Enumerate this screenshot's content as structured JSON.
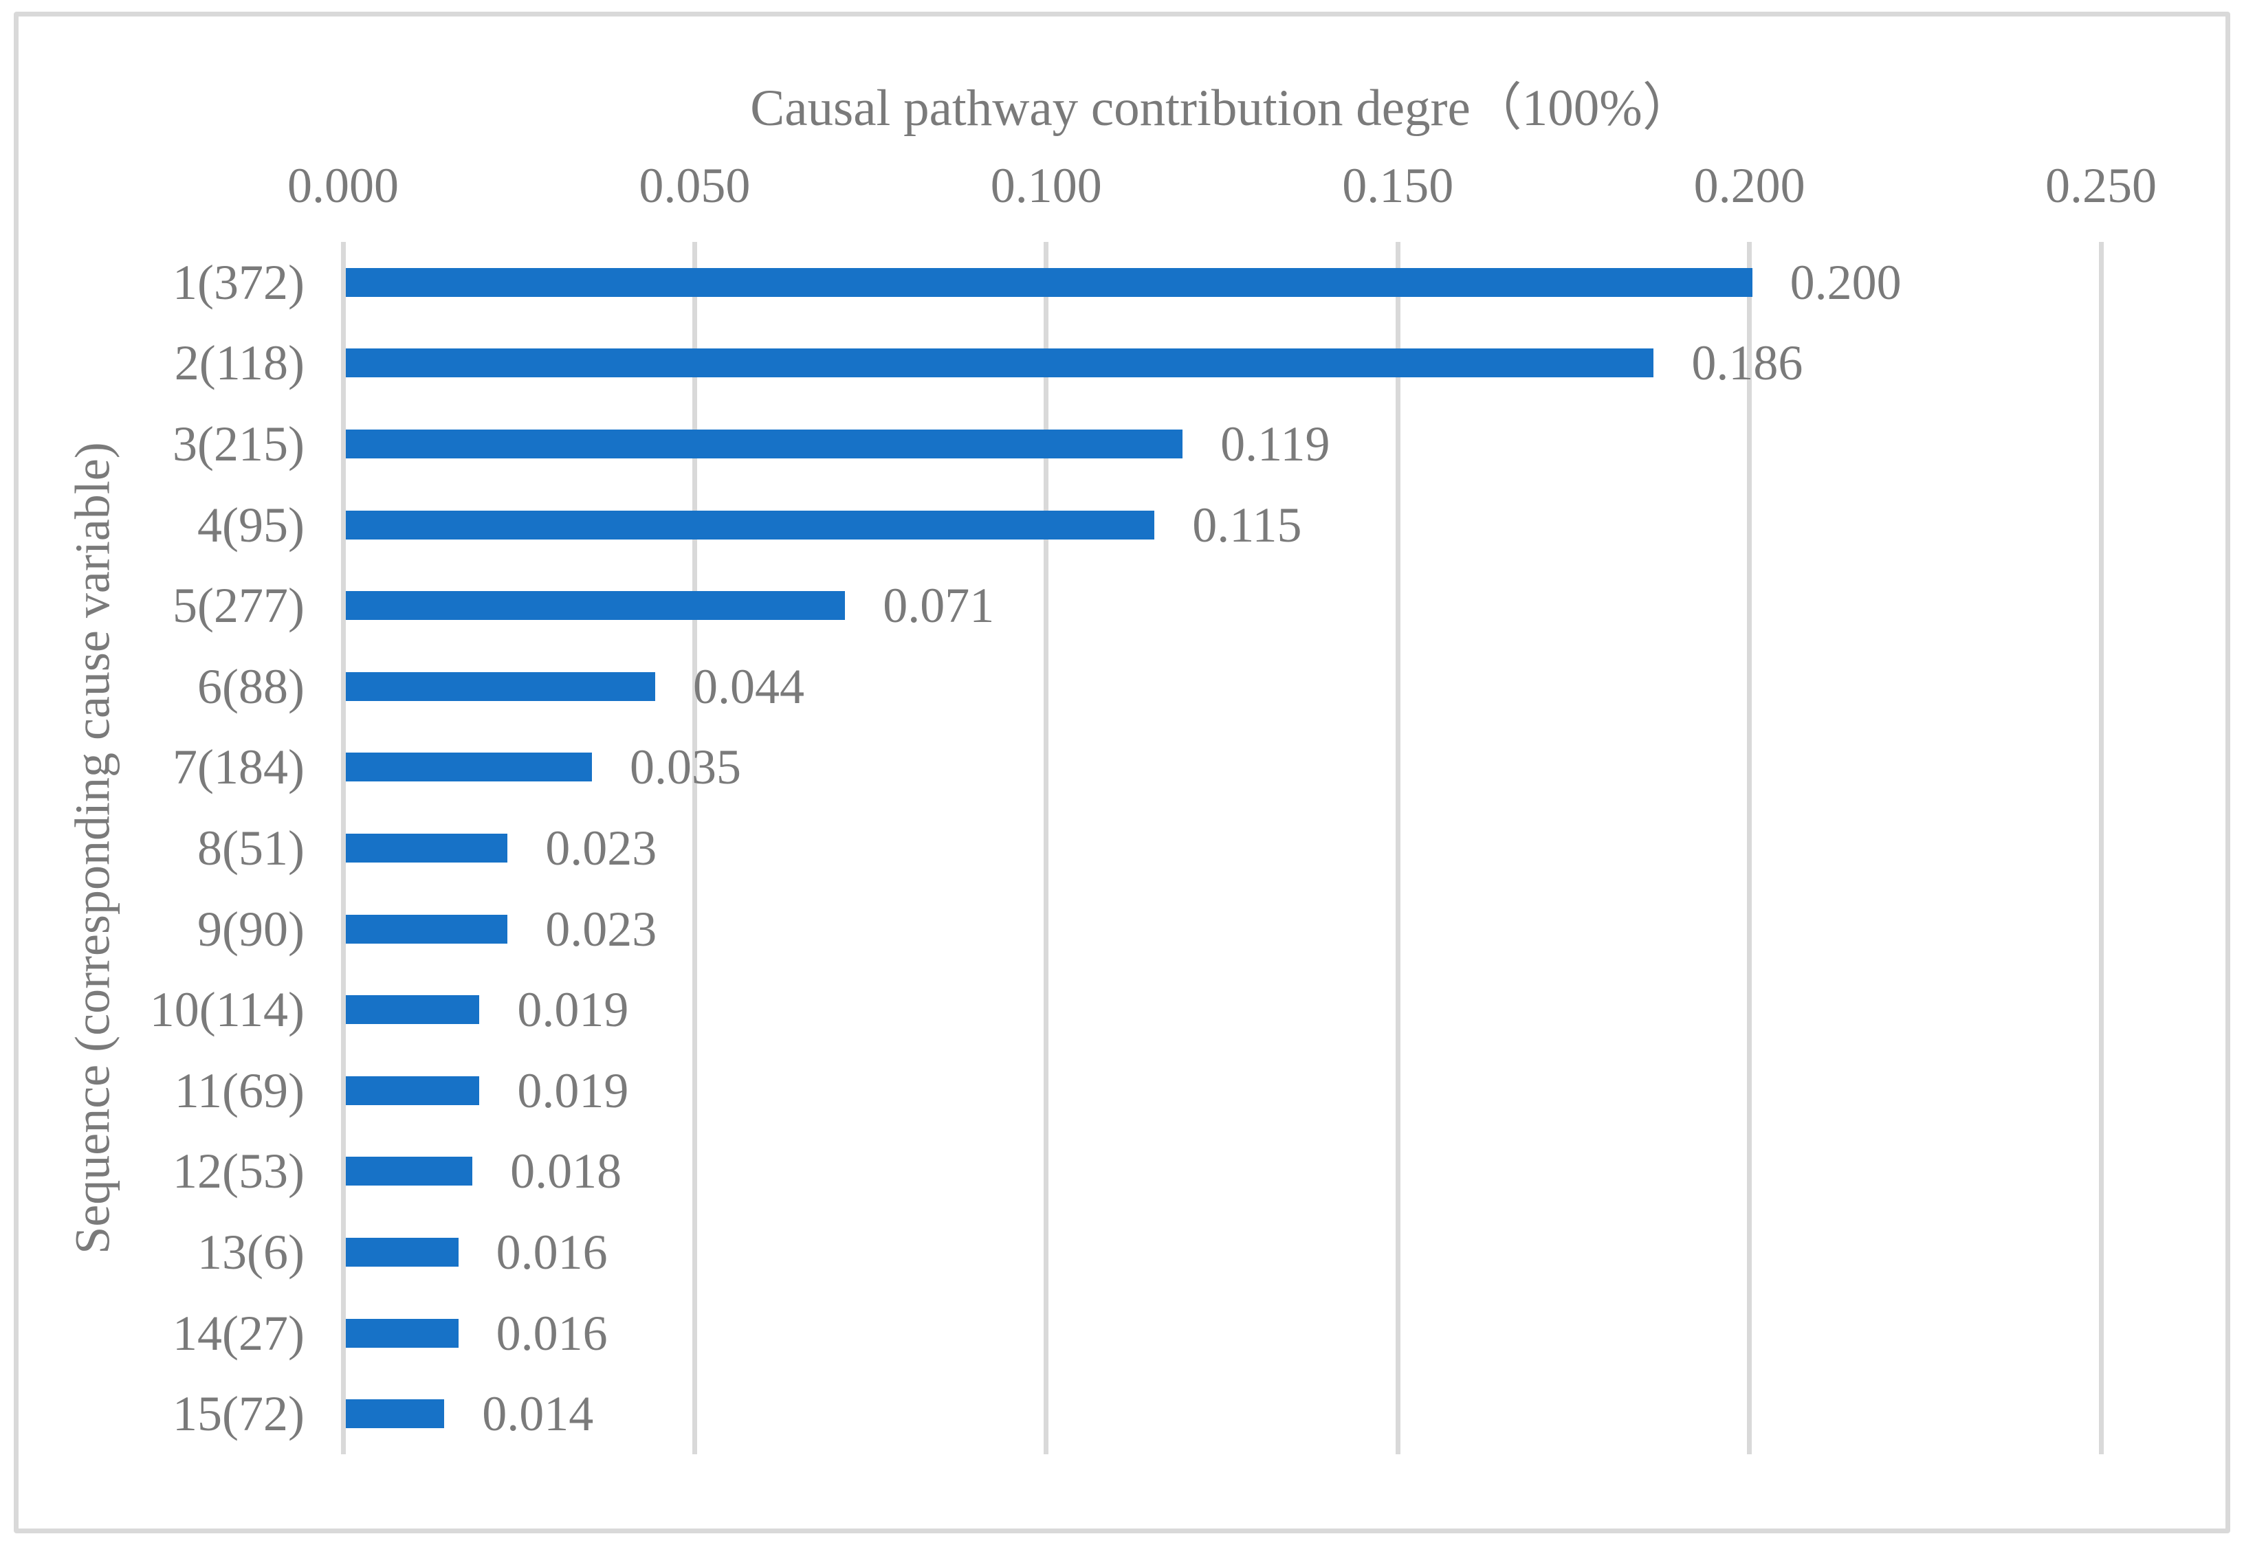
{
  "figure": {
    "title": "Causal pathway contribution degre（100%）",
    "y_axis_title": "Sequence (corresponding cause variable)"
  },
  "chart_data": {
    "type": "bar",
    "orientation": "horizontal",
    "title": "Causal pathway contribution degre（100%）",
    "xlabel": "",
    "ylabel": "Sequence (corresponding cause variable)",
    "categories": [
      "1(372)",
      "2(118)",
      "3(215)",
      "4(95)",
      "5(277)",
      "6(88)",
      "7(184)",
      "8(51)",
      "9(90)",
      "10(114)",
      "11(69)",
      "12(53)",
      "13(6)",
      "14(27)",
      "15(72)"
    ],
    "values": [
      0.2,
      0.186,
      0.119,
      0.115,
      0.071,
      0.044,
      0.035,
      0.023,
      0.023,
      0.019,
      0.019,
      0.018,
      0.016,
      0.016,
      0.014
    ],
    "value_labels": [
      "0.200",
      "0.186",
      "0.119",
      "0.115",
      "0.071",
      "0.044",
      "0.035",
      "0.023",
      "0.023",
      "0.019",
      "0.019",
      "0.018",
      "0.016",
      "0.016",
      "0.014"
    ],
    "xlim": [
      0.0,
      0.25
    ],
    "xticks": [
      "0.000",
      "0.050",
      "0.100",
      "0.150",
      "0.200",
      "0.250"
    ],
    "grid": true,
    "gridline_orientation": "vertical",
    "legend": false,
    "tick_label_position": "top",
    "colors": {
      "bar": "#1772c7",
      "text": "#7a7a7a",
      "gridline": "#d9d9d9",
      "border": "#d9d9d9",
      "background": "#ffffff"
    }
  }
}
